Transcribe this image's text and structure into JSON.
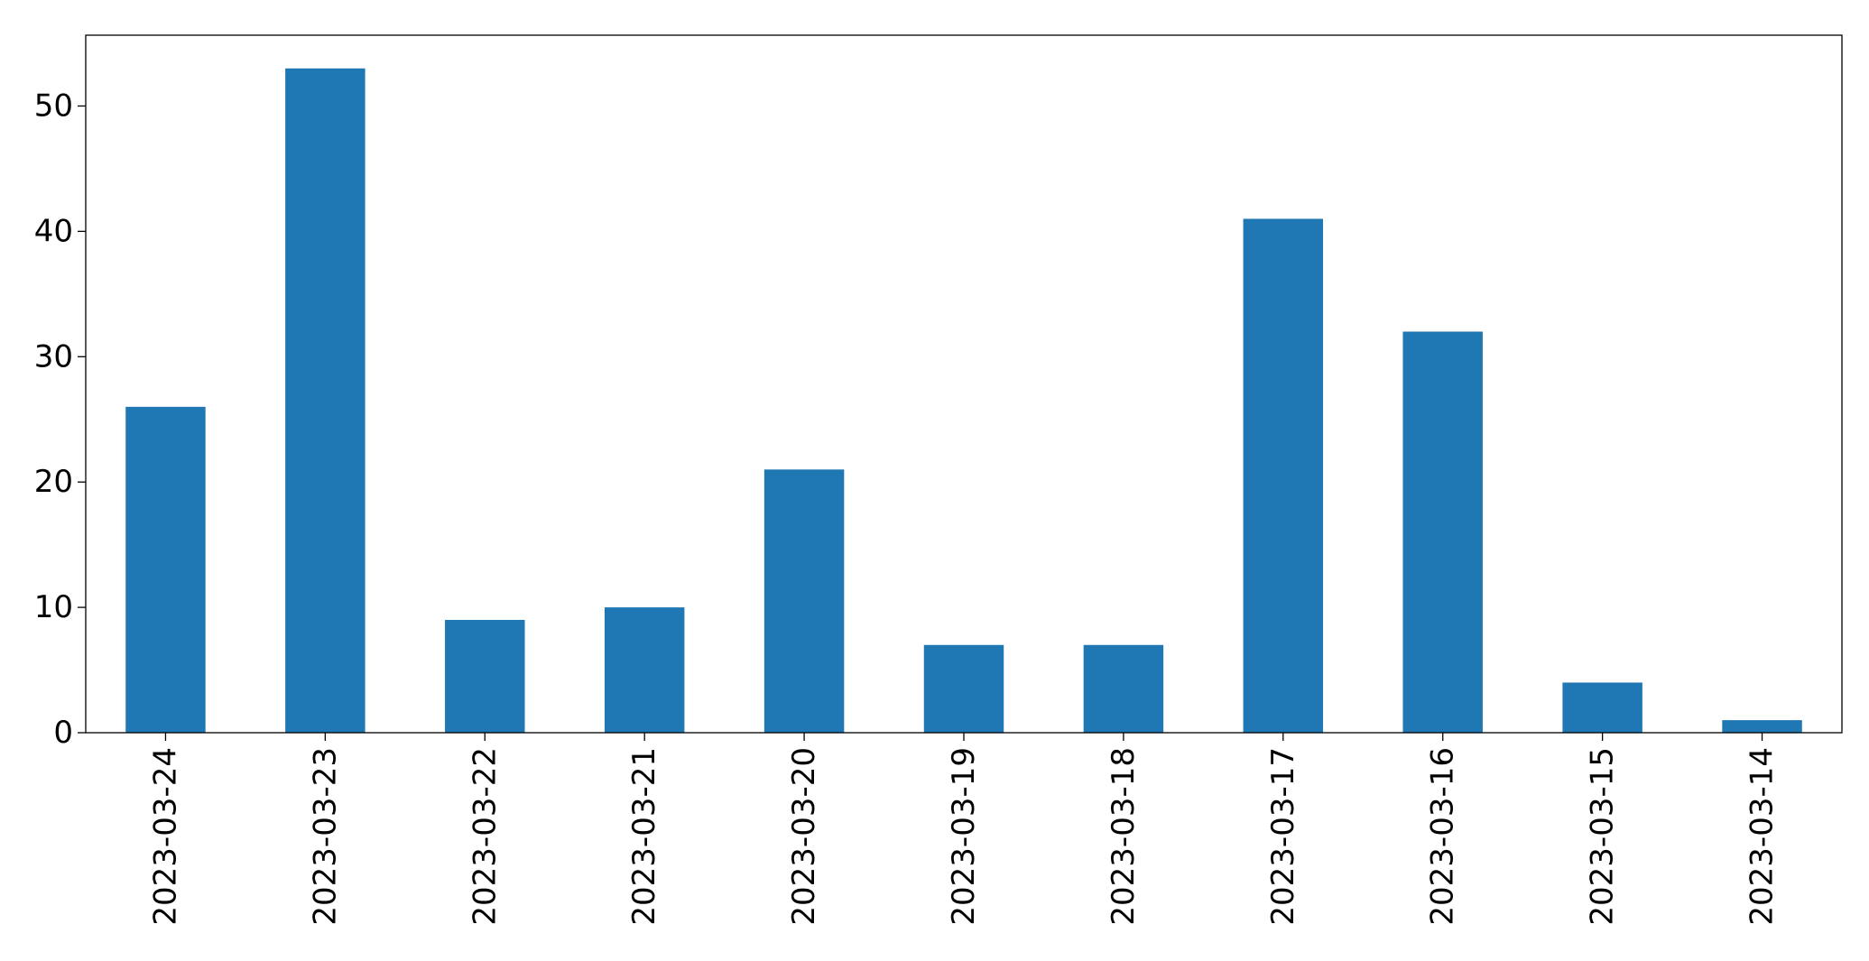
{
  "chart_data": {
    "type": "bar",
    "title": "",
    "xlabel": "",
    "ylabel": "",
    "categories": [
      "2023-03-24",
      "2023-03-23",
      "2023-03-22",
      "2023-03-21",
      "2023-03-20",
      "2023-03-19",
      "2023-03-18",
      "2023-03-17",
      "2023-03-16",
      "2023-03-15",
      "2023-03-14"
    ],
    "values": [
      26,
      53,
      9,
      10,
      21,
      7,
      7,
      41,
      32,
      4,
      1
    ],
    "ylim": [
      0,
      55.65
    ],
    "yticks": [
      0,
      10,
      20,
      30,
      40,
      50
    ],
    "grid": false,
    "legend": "none",
    "bar_color": "#1f77b4"
  }
}
